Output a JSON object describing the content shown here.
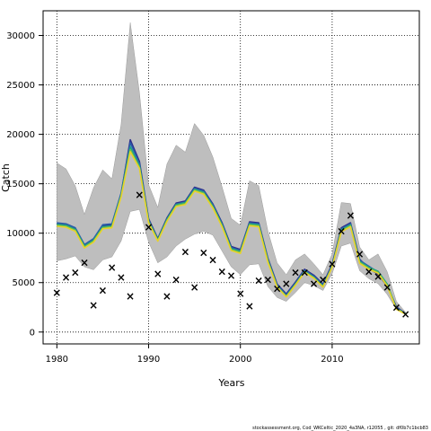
{
  "chart_data": {
    "type": "line",
    "xlabel": "Years",
    "ylabel": "Catch",
    "xlim": [
      1978.5,
      2019.5
    ],
    "ylim": [
      -1200,
      32500
    ],
    "xticks": [
      1980,
      1990,
      2000,
      2010
    ],
    "yticks": [
      0,
      5000,
      10000,
      15000,
      20000,
      25000,
      30000
    ],
    "grid": true,
    "footer": "stockassessment.org, Cod_WKCeltic_2020_4a3NA, r12055 ,  git:  df0b7c1bcb83",
    "band": {
      "color": "#bebebe",
      "x": [
        1980,
        1981,
        1982,
        1983,
        1984,
        1985,
        1986,
        1987,
        1988,
        1989,
        1990,
        1991,
        1992,
        1993,
        1994,
        1995,
        1996,
        1997,
        1998,
        1999,
        2000,
        2001,
        2002,
        2003,
        2004,
        2005,
        2006,
        2007,
        2008,
        2009,
        2010,
        2011,
        2012,
        2013,
        2014,
        2015,
        2016,
        2017,
        2018
      ],
      "lower": [
        7200,
        7400,
        7700,
        6600,
        6300,
        7300,
        7600,
        9200,
        12200,
        12400,
        9100,
        7000,
        7600,
        8700,
        9400,
        9900,
        10200,
        9800,
        8200,
        6600,
        5800,
        6800,
        6900,
        4600,
        3500,
        3100,
        4000,
        5000,
        4700,
        4200,
        5900,
        8700,
        9000,
        6200,
        5400,
        4900,
        3800,
        2300,
        1900
      ],
      "upper": [
        17100,
        16500,
        14800,
        11900,
        14600,
        16400,
        15500,
        21000,
        31300,
        24200,
        14900,
        12600,
        17000,
        18900,
        18200,
        21100,
        19900,
        17700,
        14700,
        11500,
        10800,
        15300,
        14800,
        10200,
        7000,
        5800,
        7300,
        7900,
        6900,
        5800,
        7900,
        13100,
        13000,
        8600,
        7300,
        7900,
        6100,
        3100,
        2000
      ]
    },
    "series": [
      {
        "color": "#2d2e8a",
        "values": [
          10950,
          10850,
          10450,
          8750,
          9350,
          10750,
          10850,
          13950,
          19450,
          17250,
          11450,
          9450,
          11550,
          13050,
          13250,
          14650,
          14350,
          12950,
          11050,
          8650,
          8350,
          11150,
          11050,
          7450,
          4850,
          3850,
          5050,
          6350,
          5750,
          4850,
          6850,
          10550,
          11050,
          7350,
          6450,
          5850,
          4650,
          2550,
          1850
        ]
      },
      {
        "color": "#2a5caa",
        "values": [
          11050,
          10950,
          10550,
          8850,
          9450,
          10850,
          10950,
          14050,
          19150,
          17050,
          11350,
          9350,
          11450,
          12950,
          13150,
          14550,
          14250,
          12850,
          10950,
          8550,
          8250,
          11050,
          10950,
          7350,
          4750,
          3750,
          4950,
          6250,
          5650,
          4750,
          6750,
          10450,
          10950,
          7250,
          6650,
          6050,
          4750,
          2450,
          1850
        ]
      },
      {
        "color": "#1f9e89",
        "values": [
          10900,
          10800,
          10400,
          8700,
          9300,
          10650,
          10750,
          13850,
          18750,
          16850,
          11250,
          9350,
          11400,
          12900,
          13100,
          14450,
          14150,
          12750,
          10850,
          8450,
          8150,
          10950,
          10850,
          7250,
          4650,
          3650,
          4850,
          6150,
          5550,
          4650,
          6650,
          10350,
          10850,
          7150,
          6550,
          6150,
          4850,
          2400,
          1850
        ]
      },
      {
        "color": "#6cc24a",
        "values": [
          10800,
          10700,
          10300,
          8600,
          9200,
          10550,
          10650,
          13750,
          18450,
          16650,
          11150,
          9250,
          11300,
          12800,
          13000,
          14350,
          14050,
          12650,
          10750,
          8350,
          8050,
          10850,
          10750,
          7150,
          4600,
          3600,
          4800,
          6100,
          5500,
          4600,
          6600,
          10250,
          10750,
          7050,
          6450,
          6050,
          4750,
          2350,
          1850
        ]
      },
      {
        "color": "#e8d22a",
        "values": [
          10700,
          10600,
          10200,
          8500,
          9100,
          10450,
          10550,
          13650,
          18250,
          16550,
          11050,
          9200,
          11200,
          12700,
          12900,
          14250,
          13950,
          12550,
          10650,
          8250,
          7950,
          10750,
          10650,
          7050,
          4550,
          3550,
          4750,
          6050,
          5450,
          4550,
          6550,
          10150,
          10650,
          6950,
          6350,
          5950,
          4650,
          2300,
          1800
        ]
      }
    ],
    "observed": {
      "marker": "×",
      "x": [
        1980,
        1981,
        1982,
        1983,
        1984,
        1985,
        1986,
        1987,
        1988,
        1989,
        1990,
        1991,
        1992,
        1993,
        1994,
        1995,
        1996,
        1997,
        1998,
        1999,
        2000,
        2001,
        2002,
        2003,
        2004,
        2005,
        2006,
        2007,
        2008,
        2009,
        2010,
        2011,
        2012,
        2013,
        2014,
        2015,
        2016,
        2017,
        2018
      ],
      "values": [
        4000,
        5500,
        6000,
        7000,
        2700,
        4200,
        6500,
        5500,
        3600,
        13900,
        10600,
        5900,
        3600,
        5300,
        8100,
        4500,
        8000,
        7300,
        6100,
        5700,
        3900,
        2600,
        5200,
        5300,
        4400,
        4900,
        6000,
        6000,
        4900,
        5300,
        6900,
        10200,
        11800,
        7900,
        6100,
        5600,
        4500,
        2500,
        1800
      ]
    }
  }
}
